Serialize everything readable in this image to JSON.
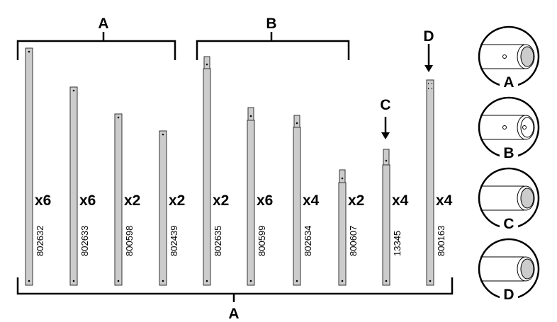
{
  "brackets": {
    "top": [
      {
        "label": "A"
      },
      {
        "label": "B"
      }
    ],
    "bottom": {
      "label": "A"
    }
  },
  "callouts": [
    {
      "label": "C"
    },
    {
      "label": "D"
    }
  ],
  "parts": [
    {
      "quantity": "x6",
      "part_number": "802632"
    },
    {
      "quantity": "x6",
      "part_number": "802633"
    },
    {
      "quantity": "x2",
      "part_number": "800598"
    },
    {
      "quantity": "x2",
      "part_number": "802439"
    },
    {
      "quantity": "x2",
      "part_number": "802635"
    },
    {
      "quantity": "x6",
      "part_number": "800599"
    },
    {
      "quantity": "x4",
      "part_number": "802634"
    },
    {
      "quantity": "x2",
      "part_number": "800607"
    },
    {
      "quantity": "x4",
      "part_number": "13345"
    },
    {
      "quantity": "x4",
      "part_number": "800163"
    }
  ],
  "details": [
    {
      "label": "A"
    },
    {
      "label": "B"
    },
    {
      "label": "C"
    },
    {
      "label": "D"
    }
  ]
}
